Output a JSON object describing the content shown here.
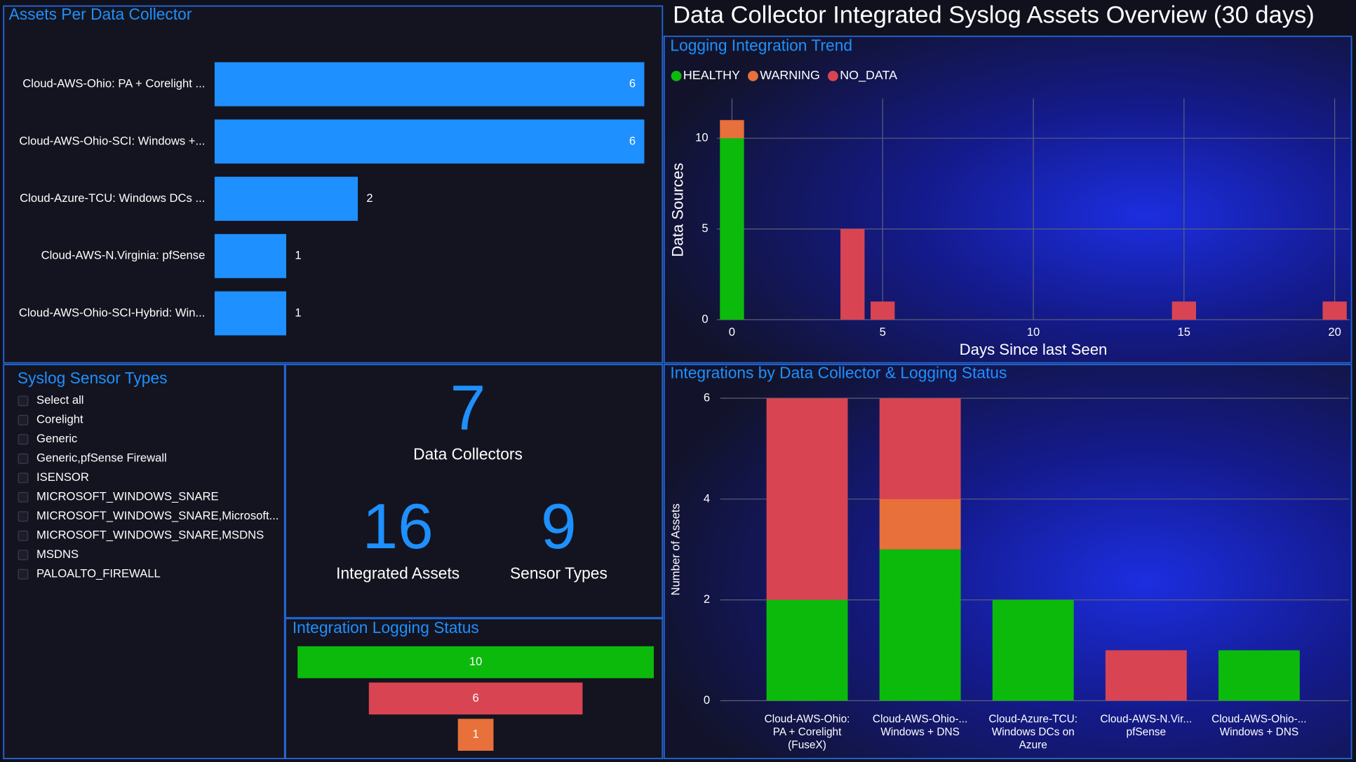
{
  "title": "Data Collector Integrated Syslog Assets Overview (30 days)",
  "chart_data": [
    {
      "type": "hbar",
      "title": "Assets Per Data Collector",
      "categories": [
        "Cloud-AWS-Ohio: PA + Corelight ...",
        "Cloud-AWS-Ohio-SCI: Windows +...",
        "Cloud-Azure-TCU: Windows DCs ...",
        "Cloud-AWS-N.Virginia: pfSense",
        "Cloud-AWS-Ohio-SCI-Hybrid: Win..."
      ],
      "values": [
        6,
        6,
        2,
        1,
        1
      ],
      "color": "#1e90ff"
    },
    {
      "type": "stacked_bar_numeric",
      "title": "Logging Integration Trend",
      "x": [
        0,
        4,
        5,
        15,
        20
      ],
      "series": [
        {
          "name": "HEALTHY",
          "color": "#0cba0c",
          "values": [
            10,
            null,
            null,
            null,
            null
          ]
        },
        {
          "name": "WARNING",
          "color": "#e8703a",
          "values": [
            1,
            null,
            null,
            null,
            null
          ]
        },
        {
          "name": "NO_DATA",
          "color": "#d94452",
          "values": [
            null,
            5,
            1,
            1,
            1
          ]
        }
      ],
      "xlim": [
        -0.5,
        20.5
      ],
      "xticks": [
        0,
        5,
        10,
        15,
        20
      ],
      "ylim": [
        0,
        12
      ],
      "yticks": [
        0,
        5,
        10
      ],
      "x_label": "Days Since last Seen",
      "y_label": "Data Sources",
      "grid": true,
      "legend": "top-left"
    },
    {
      "type": "stacked_bar",
      "title": "Integrations by Data Collector & Logging Status",
      "categories": [
        "Cloud-AWS-Ohio:\nPA + Corelight\n(FuseX)",
        "Cloud-AWS-Ohio-...\nWindows + DNS",
        "Cloud-Azure-TCU:\nWindows DCs on\nAzure",
        "Cloud-AWS-N.Vir...\npfSense",
        "Cloud-AWS-Ohio-...\nWindows + DNS"
      ],
      "series": [
        {
          "color": "#0cba0c",
          "values": [
            2,
            3,
            2,
            null,
            1
          ]
        },
        {
          "color": "#e8703a",
          "values": [
            null,
            1,
            null,
            null,
            null
          ]
        },
        {
          "color": "#d94452",
          "values": [
            4,
            2,
            null,
            1,
            null
          ]
        }
      ],
      "ylim": [
        0,
        6
      ],
      "yticks": [
        0,
        2,
        4,
        6
      ],
      "y_label": "Number of Assets",
      "grid": true
    },
    {
      "type": "funnel",
      "title": "Integration Logging Status",
      "values": [
        10,
        6,
        1
      ],
      "colors": [
        "#0cba0c",
        "#d94452",
        "#e8703a"
      ]
    }
  ],
  "filter": {
    "title": "Syslog Sensor Types",
    "options": [
      "Select all",
      "Corelight",
      "Generic",
      "Generic,pfSense Firewall",
      "ISENSOR",
      "MICROSOFT_WINDOWS_SNARE",
      "MICROSOFT_WINDOWS_SNARE,Microsoft...",
      "MICROSOFT_WINDOWS_SNARE,MSDNS",
      "MSDNS",
      "PALOALTO_FIREWALL"
    ]
  },
  "kpis": [
    {
      "value": "7",
      "label": "Data Collectors"
    },
    {
      "value": "16",
      "label": "Integrated Assets"
    },
    {
      "value": "9",
      "label": "Sensor Types"
    }
  ]
}
